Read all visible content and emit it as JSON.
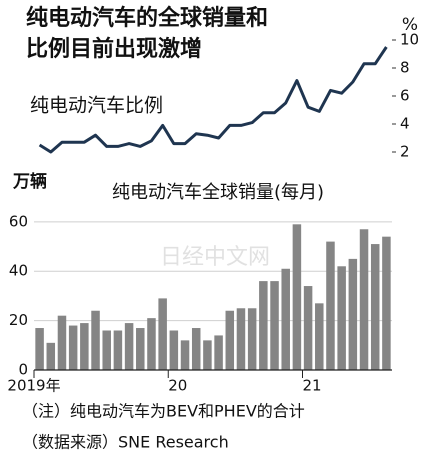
{
  "title": [
    "纯电动汽车的全球销量和",
    "比例目前出现激增"
  ],
  "notes": [
    "（注）纯电动汽车为BEV和PHEV的合计",
    "（数据来源）SNE Research"
  ],
  "watermark": "日经中文网",
  "chart_data": [
    {
      "type": "line",
      "title": "纯电动汽车比例",
      "y_unit": "%",
      "color": "#1f3550",
      "categories": [
        "2019年",
        null,
        null,
        null,
        null,
        null,
        null,
        null,
        null,
        null,
        null,
        null,
        "20",
        null,
        null,
        null,
        null,
        null,
        null,
        null,
        null,
        null,
        null,
        null,
        "21",
        null,
        null,
        null,
        null,
        null,
        null,
        null
      ],
      "values": [
        2.5,
        2.0,
        2.7,
        2.7,
        2.7,
        3.2,
        2.4,
        2.4,
        2.6,
        2.4,
        2.8,
        3.9,
        2.6,
        2.6,
        3.3,
        3.2,
        3.0,
        3.9,
        3.9,
        4.1,
        4.8,
        4.8,
        5.5,
        7.1,
        5.2,
        4.9,
        6.4,
        6.2,
        7.0,
        8.3,
        8.3,
        9.5
      ],
      "ylim": [
        2,
        10
      ],
      "yticks": [
        2,
        4,
        6,
        8,
        10
      ],
      "y_axis_side": "right"
    },
    {
      "type": "bar",
      "title": "纯电动汽车全球销量(每月)",
      "y_unit": "万辆",
      "color": "#858585",
      "categories": [
        "2019年",
        null,
        null,
        null,
        null,
        null,
        null,
        null,
        null,
        null,
        null,
        null,
        "20",
        null,
        null,
        null,
        null,
        null,
        null,
        null,
        null,
        null,
        null,
        null,
        "21",
        null,
        null,
        null,
        null,
        null,
        null,
        null
      ],
      "values": [
        17,
        11,
        22,
        18,
        19,
        24,
        16,
        16,
        19,
        17,
        21,
        29,
        16,
        12,
        17,
        12,
        14,
        24,
        25,
        25,
        36,
        36,
        41,
        59,
        34,
        27,
        52,
        42,
        45,
        57,
        51,
        54
      ],
      "ylim": [
        0,
        65
      ],
      "yticks": [
        0,
        20,
        40,
        60
      ],
      "grid": true,
      "y_axis_side": "left"
    }
  ]
}
